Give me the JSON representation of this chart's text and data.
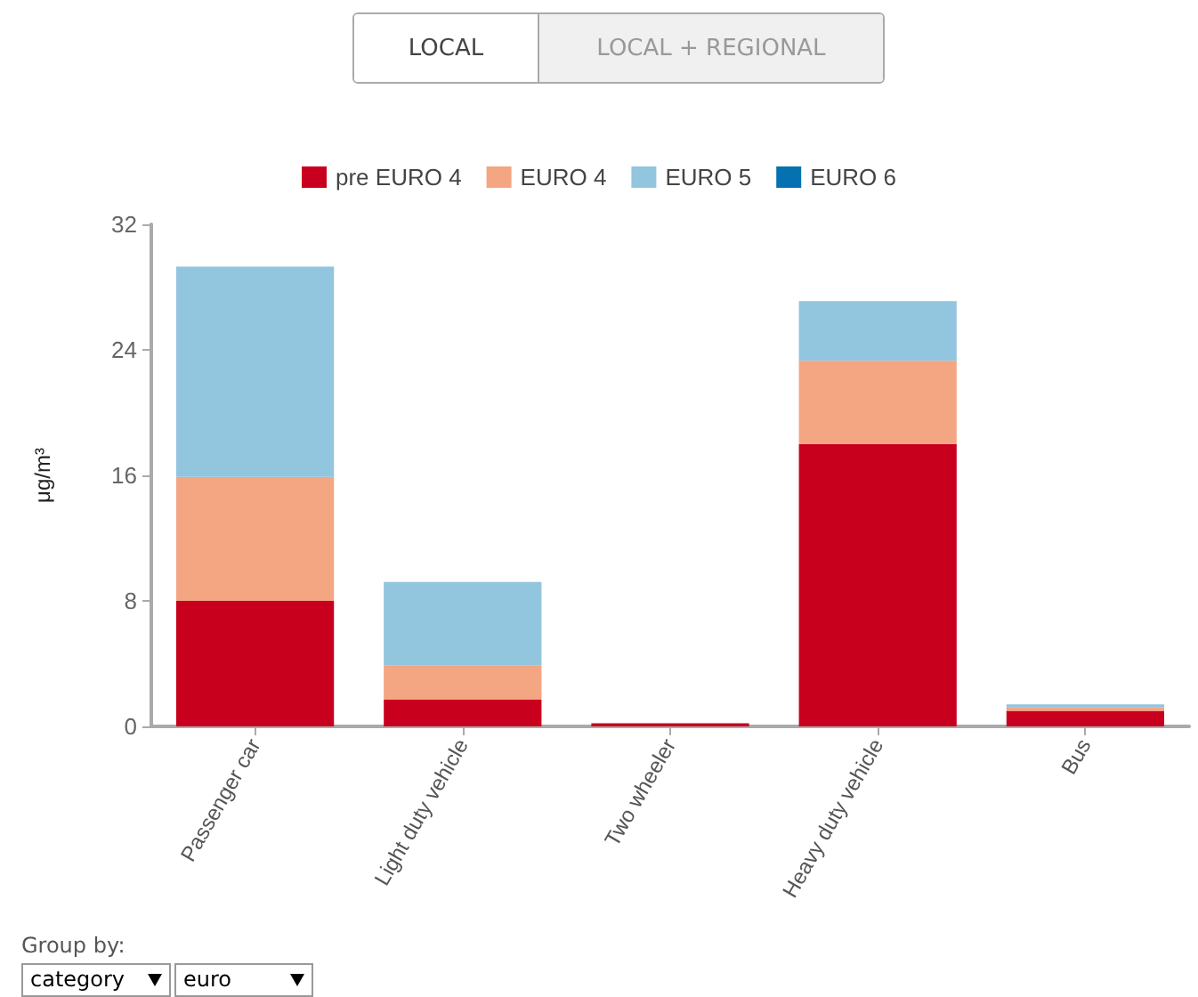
{
  "chart_data": {
    "type": "bar",
    "stacked": true,
    "ylabel": "μg/m³",
    "categories": [
      "Passenger car",
      "Light duty vehicle",
      "Two wheeler",
      "Heavy duty vehicle",
      "Bus"
    ],
    "series": [
      {
        "name": "pre EURO 4",
        "color": "#c8001e",
        "values": [
          8.0,
          1.7,
          0.2,
          18.0,
          1.0
        ]
      },
      {
        "name": "EURO 4",
        "color": "#f4a582",
        "values": [
          7.9,
          2.2,
          0,
          5.3,
          0.2
        ]
      },
      {
        "name": "EURO 5",
        "color": "#92c5de",
        "values": [
          13.4,
          5.3,
          0,
          3.8,
          0.2
        ]
      },
      {
        "name": "EURO 6",
        "color": "#0571b0",
        "values": [
          0,
          0,
          0,
          0,
          0
        ]
      }
    ],
    "ylim": [
      0,
      32
    ],
    "yticks": [
      0,
      8,
      16,
      24,
      32
    ],
    "grid": false,
    "legend": "top",
    "annotations": [
      "LOCAL",
      "LOCAL + REGIONAL",
      "Group by:",
      "category",
      "euro"
    ]
  }
}
